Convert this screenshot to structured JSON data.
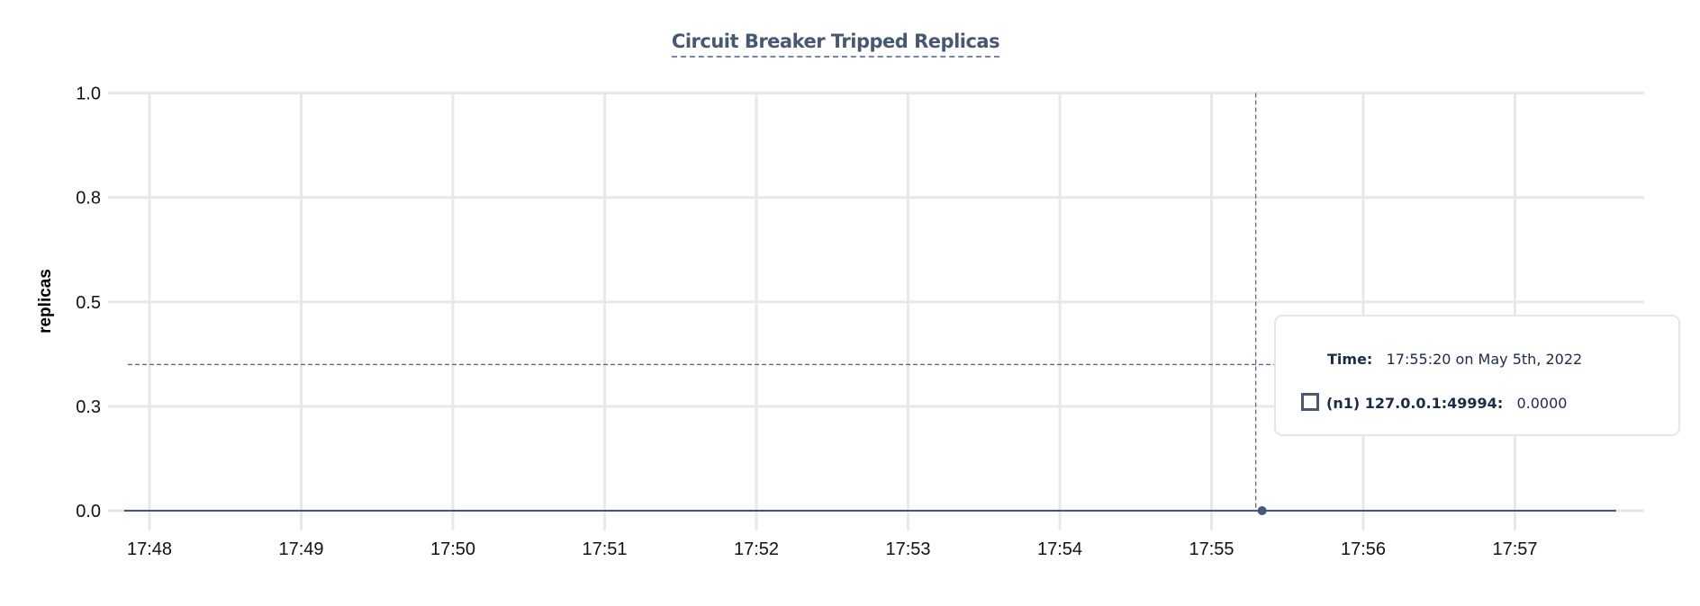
{
  "chart_data": {
    "type": "line",
    "title": "Circuit Breaker Tripped Replicas",
    "xlabel": "",
    "ylabel": "replicas",
    "ylim": [
      0,
      1
    ],
    "yticks": [
      0,
      0.25,
      0.5,
      0.75,
      1.0
    ],
    "ytick_labels": [
      "0.0",
      "0.3",
      "0.5",
      "0.8",
      "1.0"
    ],
    "xtick_labels": [
      "17:48",
      "17:49",
      "17:50",
      "17:51",
      "17:52",
      "17:53",
      "17:54",
      "17:55",
      "17:56",
      "17:57"
    ],
    "xlim": [
      "17:47:40",
      "17:58:10"
    ],
    "grid": true,
    "series": [
      {
        "name": "(n1) 127.0.0.1:49994",
        "color": "#475872",
        "x": [
          "17:47:50",
          "17:55:20",
          "17:57:40"
        ],
        "values": [
          0,
          0,
          0
        ]
      }
    ],
    "hover": {
      "x": "17:55:20",
      "y_line": 0.35
    }
  },
  "tooltip": {
    "time_label": "Time:",
    "time_value": "17:55:20 on May 5th, 2022",
    "series_label": "(n1) 127.0.0.1:49994:",
    "series_value": "0.0000"
  }
}
